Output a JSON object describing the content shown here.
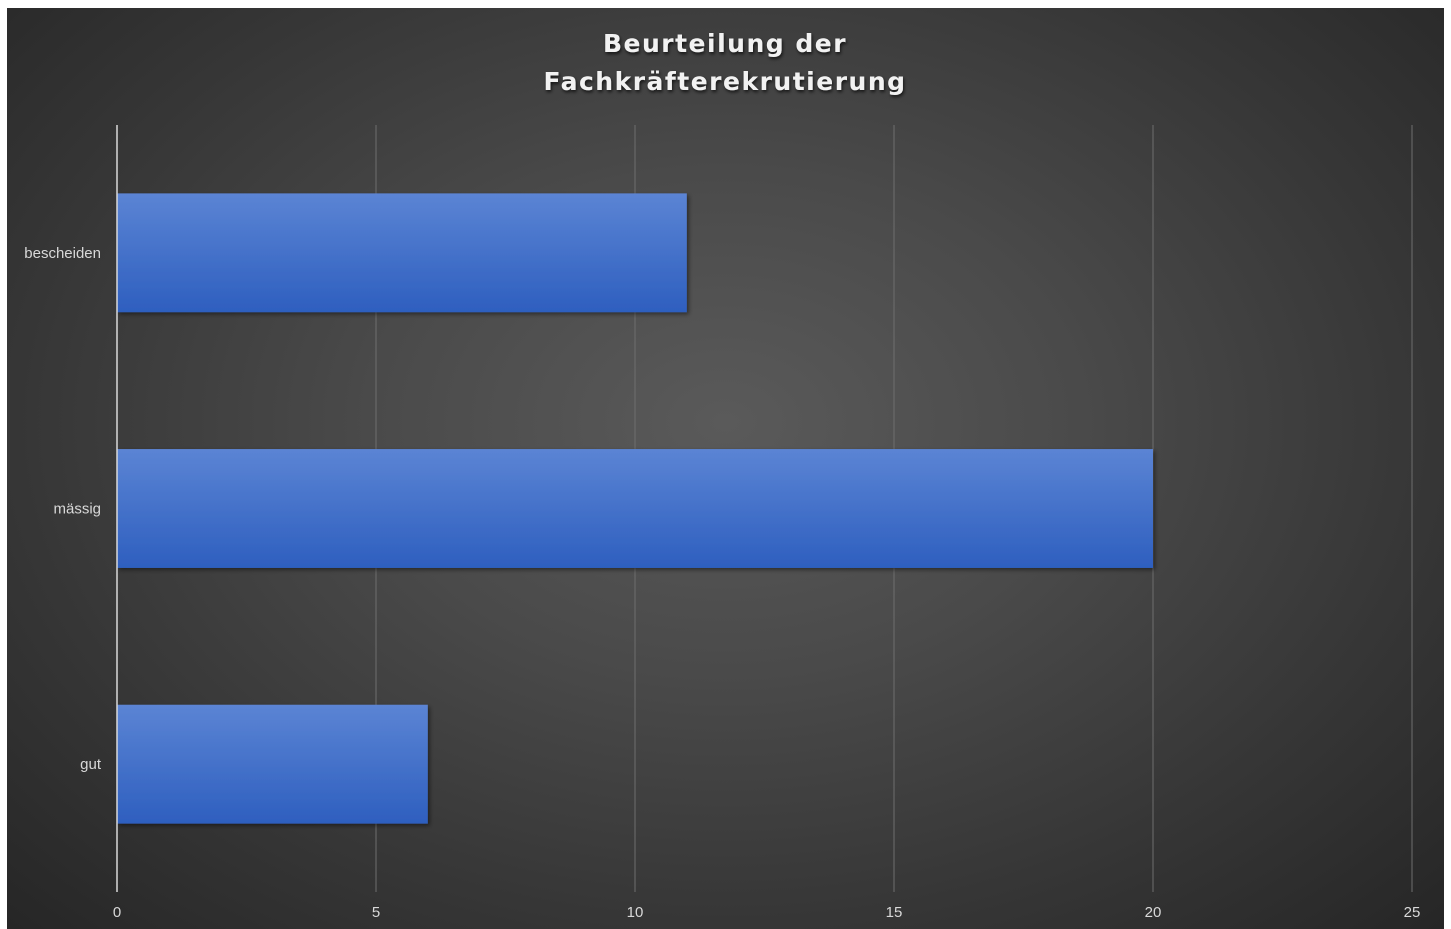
{
  "chart_data": {
    "type": "bar",
    "orientation": "horizontal",
    "title_lines": [
      "Beurteilung der",
      "Fachkräfterekrutierung"
    ],
    "categories": [
      "bescheiden",
      "mässig",
      "gut"
    ],
    "values": [
      11,
      20,
      6
    ],
    "xlim": [
      0,
      25
    ],
    "xticks": [
      0,
      5,
      10,
      15,
      20,
      25
    ],
    "xlabel": "",
    "ylabel": "",
    "grid": true,
    "legend": "none",
    "colors": {
      "bar_top": "#5b84d4",
      "bar_bottom": "#2e5fbf",
      "grid": "#6e6e6e",
      "axis": "#d9d9d9",
      "text": "#d9d9d9",
      "title": "#f2f2f2"
    }
  }
}
